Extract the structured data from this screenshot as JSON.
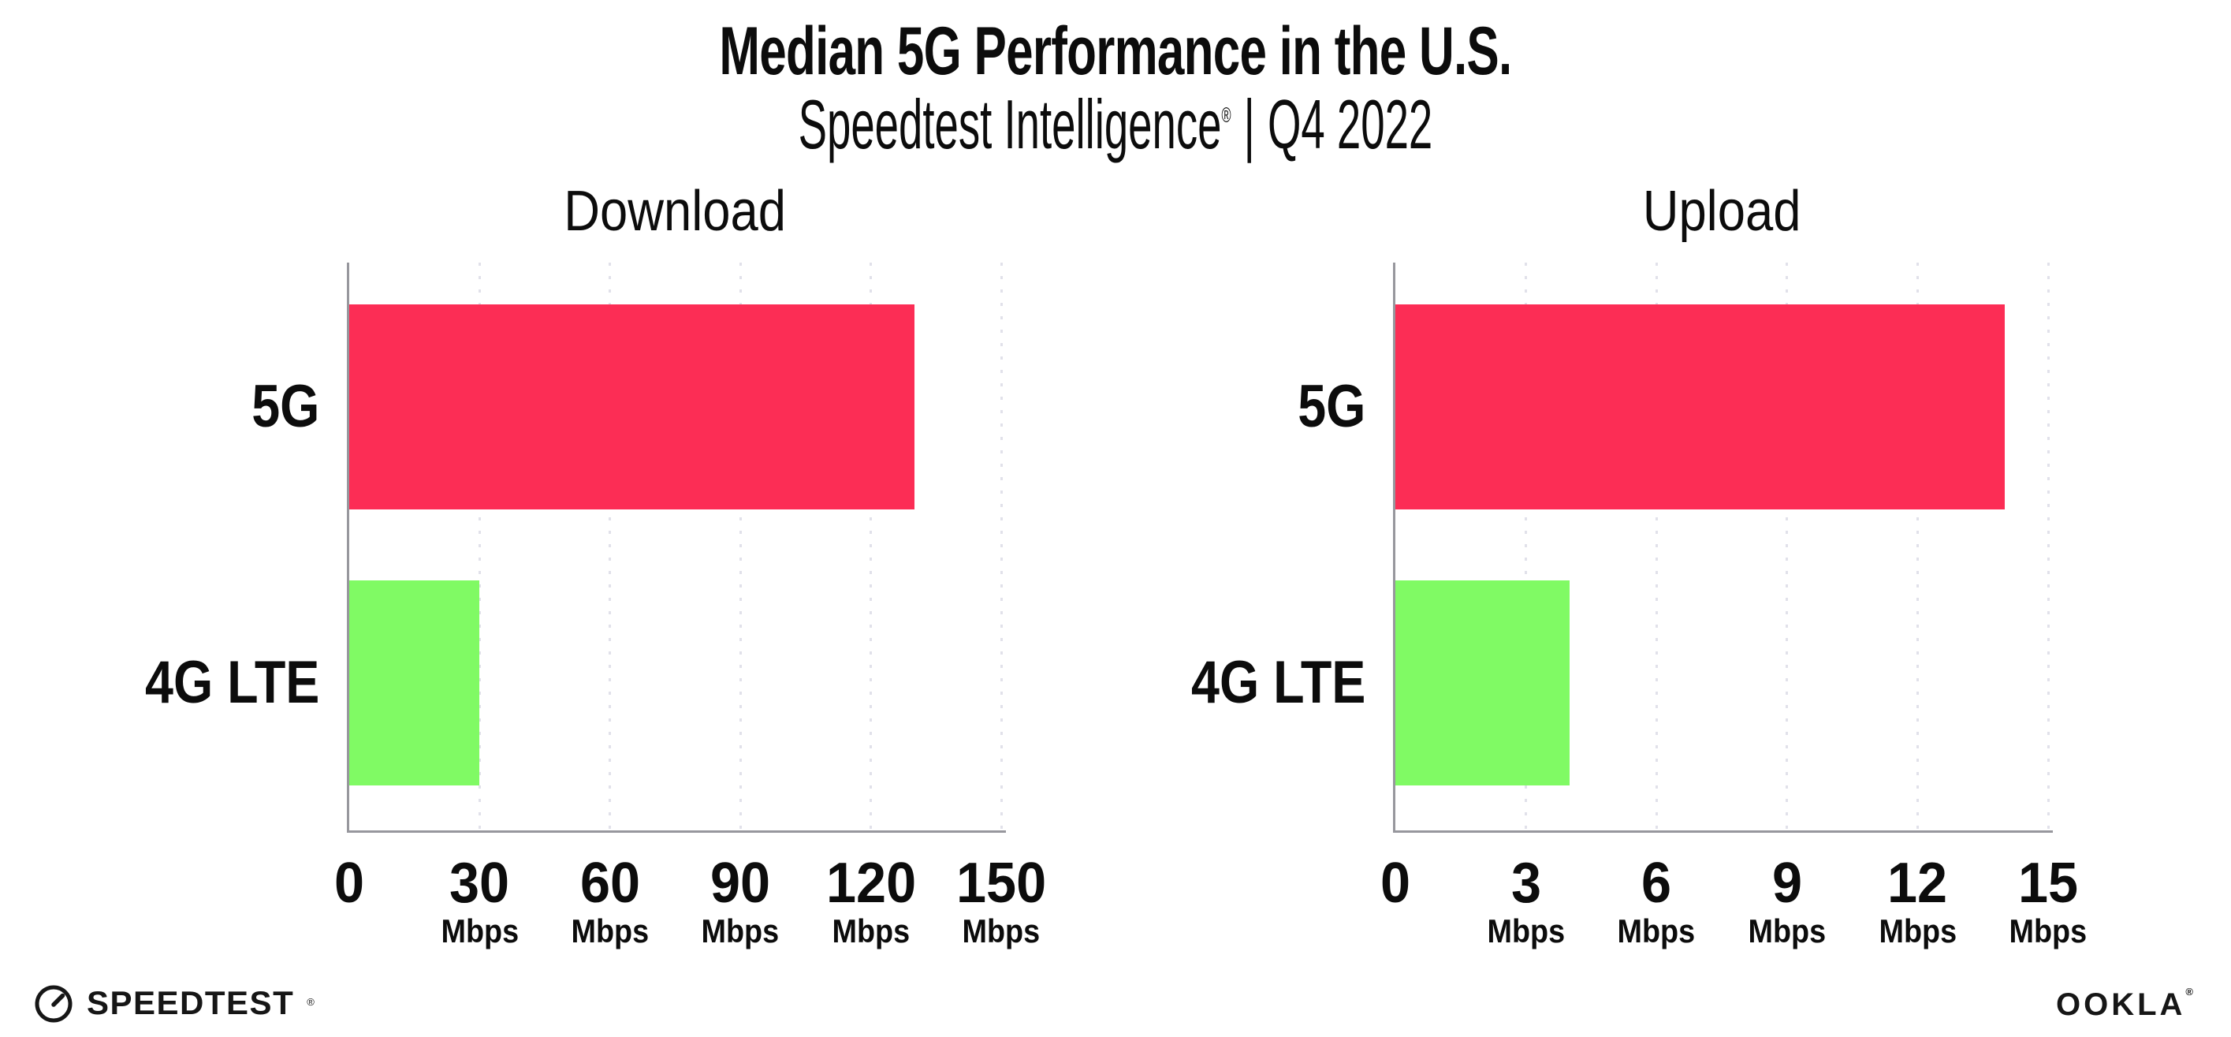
{
  "header": {
    "title": "Median 5G Performance in the U.S.",
    "subtitle": {
      "brand": "Speedtest Intelligence",
      "registered": "®",
      "separator": "|",
      "period": "Q4 2022"
    }
  },
  "chart_data": [
    {
      "type": "bar",
      "orientation": "horizontal",
      "title": "Download",
      "categories": [
        "5G",
        "4G LTE"
      ],
      "values": [
        130,
        30
      ],
      "unit": "Mbps",
      "xlim": [
        0,
        150
      ],
      "xticks": [
        0,
        30,
        60,
        90,
        120,
        150
      ],
      "grid": "dotted-vertical",
      "legend": "none",
      "bar_colors": [
        "#fc2d55",
        "#80fa64"
      ]
    },
    {
      "type": "bar",
      "orientation": "horizontal",
      "title": "Upload",
      "categories": [
        "5G",
        "4G LTE"
      ],
      "values": [
        14,
        4
      ],
      "unit": "Mbps",
      "xlim": [
        0,
        15
      ],
      "xticks": [
        0,
        3,
        6,
        9,
        12,
        15
      ],
      "grid": "dotted-vertical",
      "legend": "none",
      "bar_colors": [
        "#fc2d55",
        "#80fa64"
      ]
    }
  ],
  "footer": {
    "speedtest": "SPEEDTEST",
    "speedtest_registered": "®",
    "ookla": "OOKLA",
    "ookla_registered": "®"
  },
  "colors": {
    "bar_5g": "#fc2d55",
    "bar_4g_lte": "#80fa64",
    "gridline": "#e1e1ea",
    "axis": "#97979d",
    "text": "#0c0c0c",
    "logo": "#161616"
  }
}
